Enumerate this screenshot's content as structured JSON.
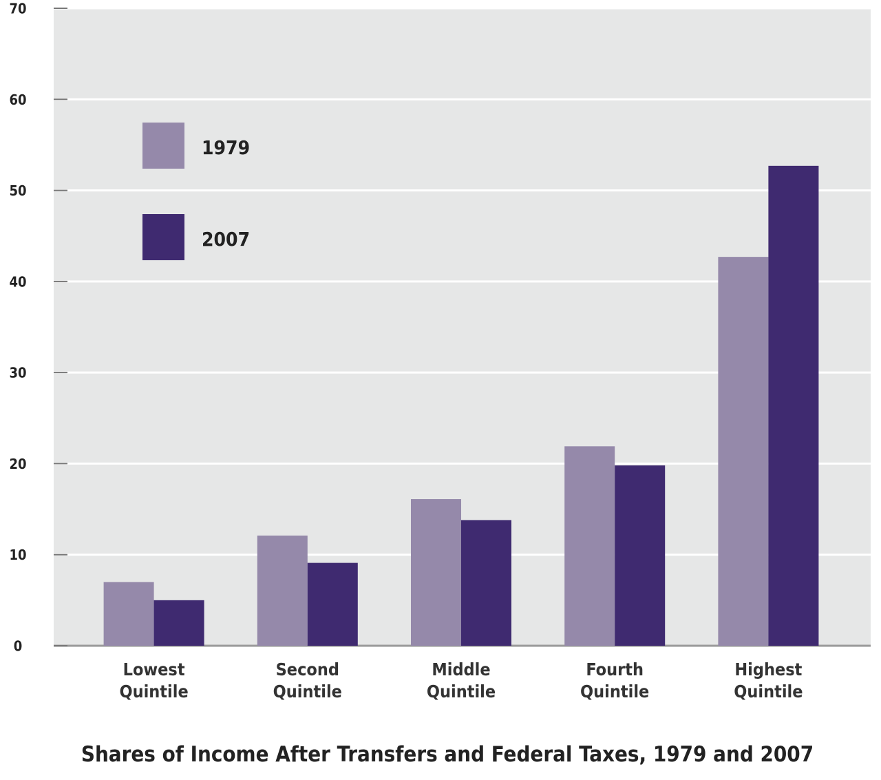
{
  "chart_data": {
    "type": "bar",
    "title": "Shares of Income After Transfers and Federal Taxes, 1979 and 2007",
    "categories": [
      "Lowest Quintile",
      "Second Quintile",
      "Middle Quintile",
      "Fourth Quintile",
      "Highest Quintile"
    ],
    "series": [
      {
        "name": "1979",
        "color": "#9589aa",
        "values": [
          7.0,
          12.1,
          16.1,
          21.9,
          42.7
        ]
      },
      {
        "name": "2007",
        "color": "#3f2a70",
        "values": [
          5.0,
          9.1,
          13.8,
          19.8,
          52.7
        ]
      }
    ],
    "ylim": [
      0,
      70
    ],
    "yticks": [
      0,
      10,
      20,
      30,
      40,
      50,
      60,
      70
    ],
    "grid": true
  }
}
